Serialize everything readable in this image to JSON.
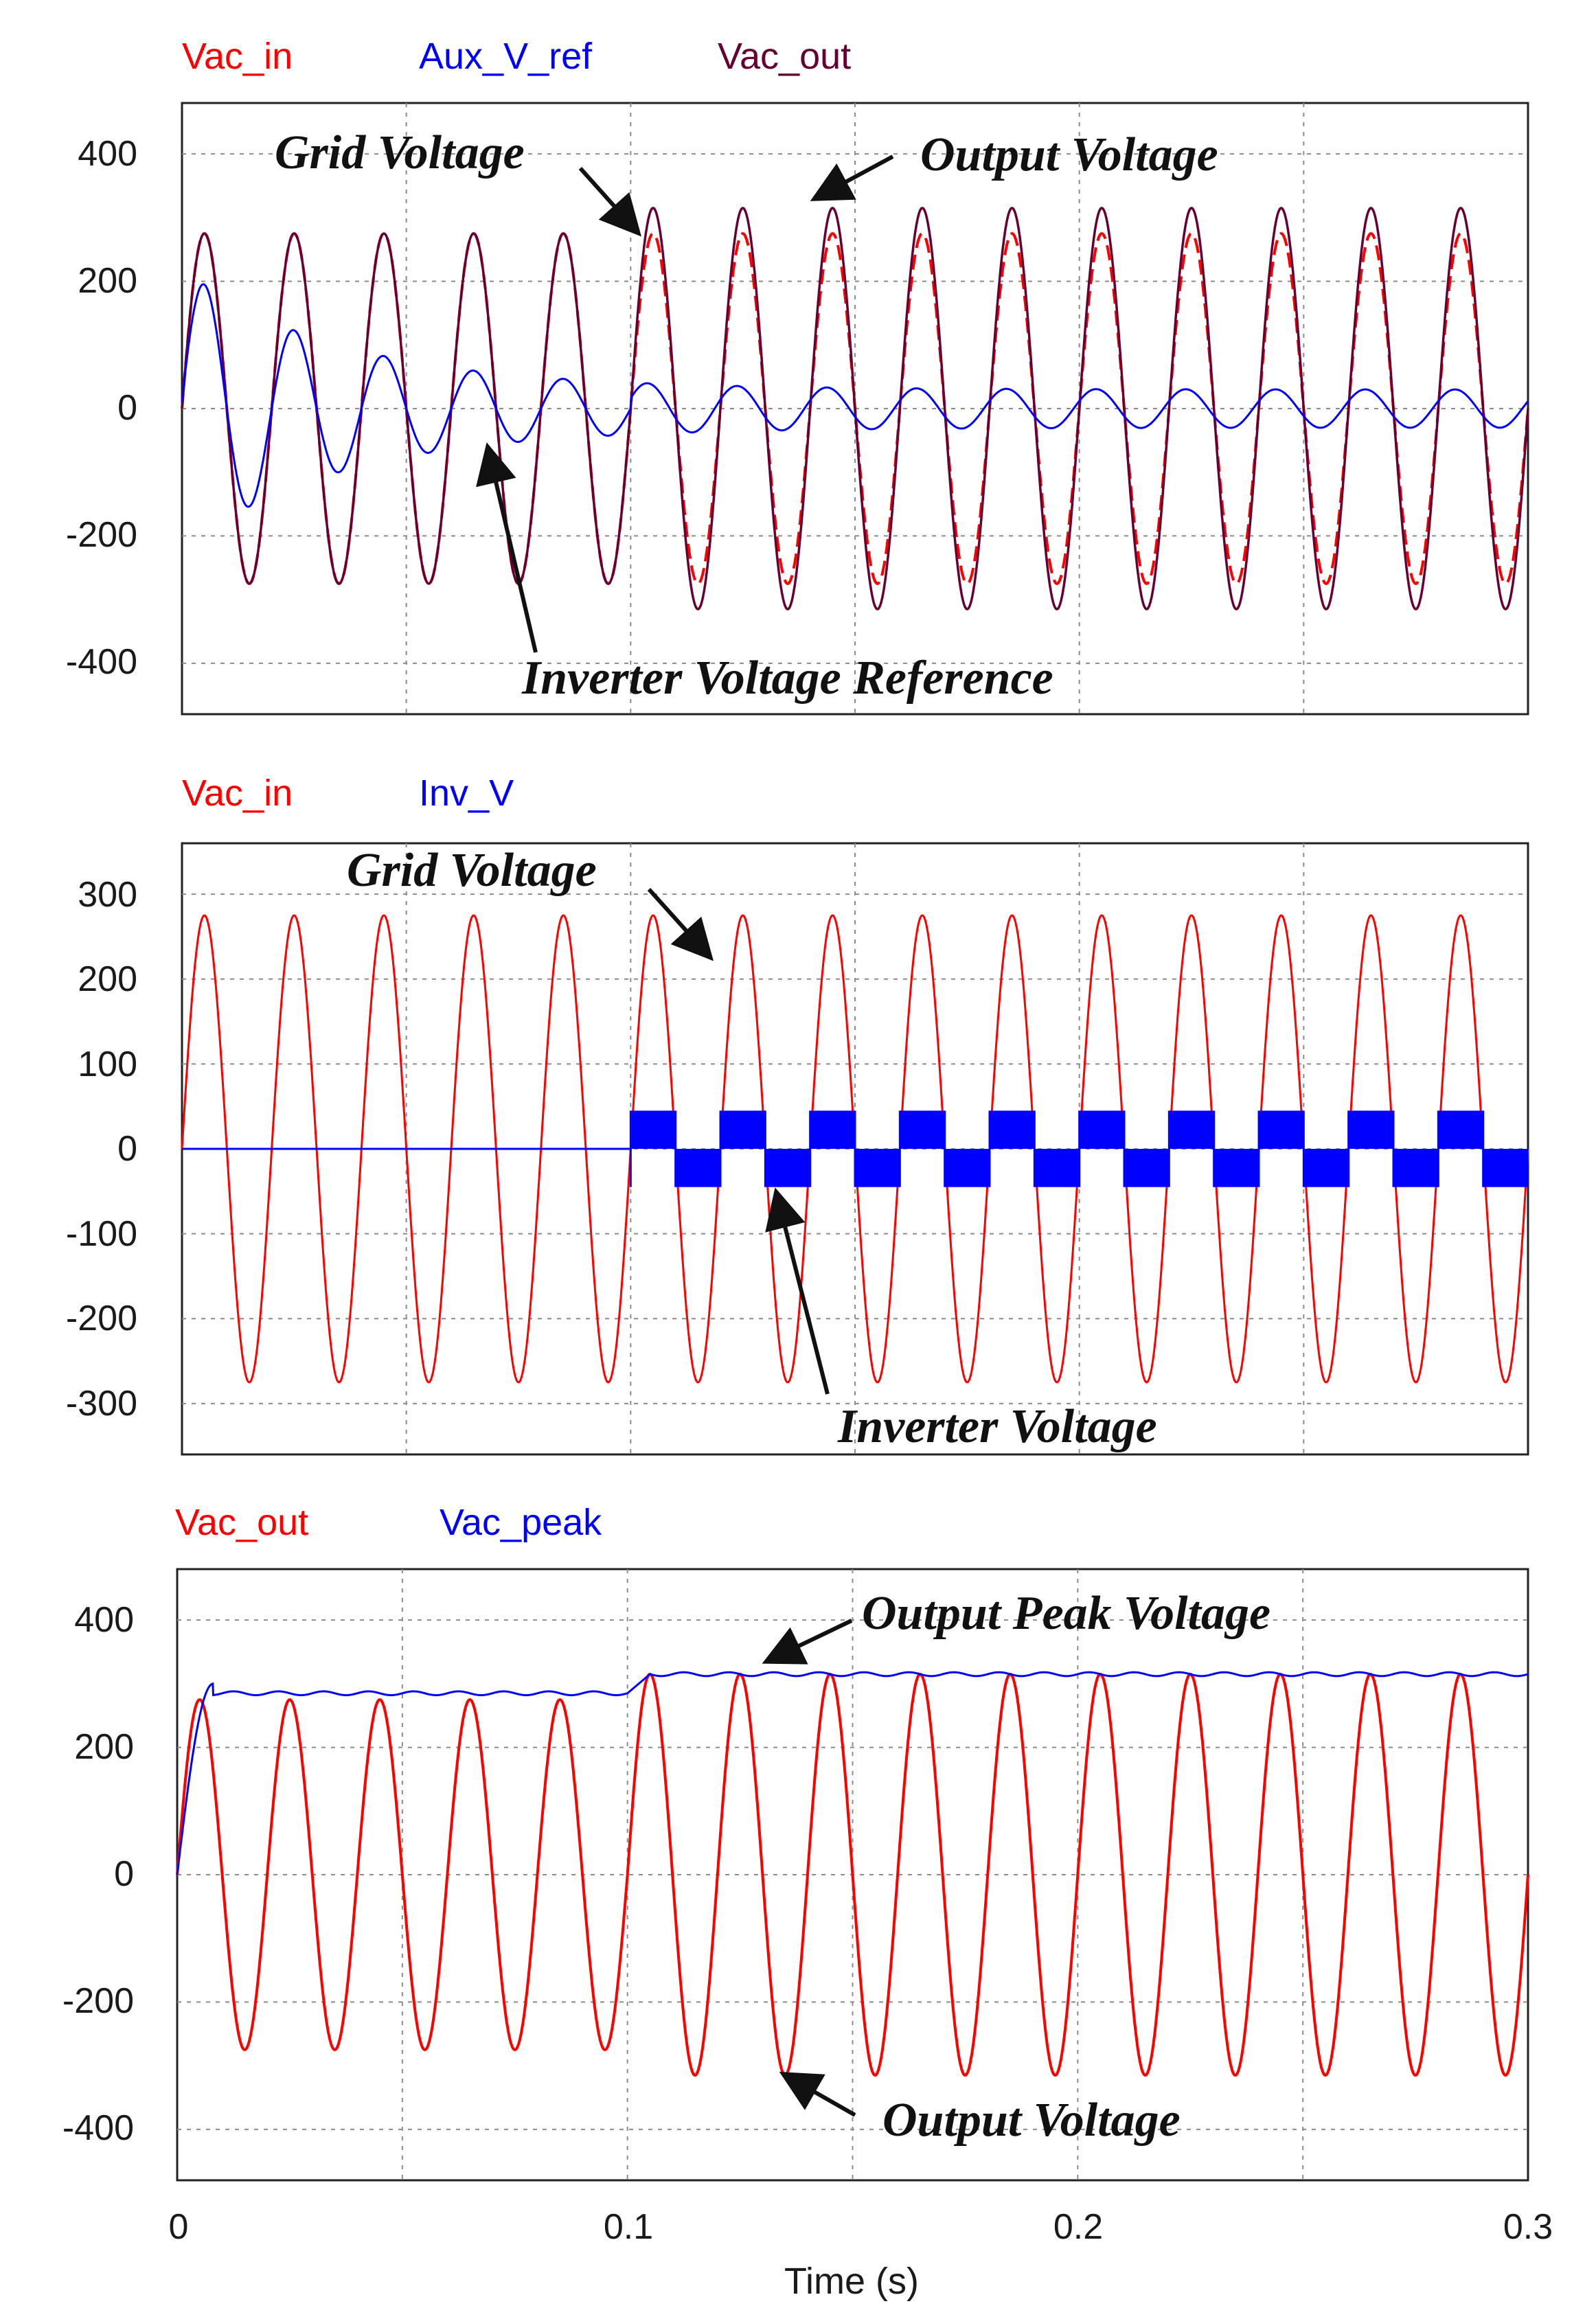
{
  "x_axis": {
    "ticks": [
      "0",
      "0.1",
      "0.2",
      "0.3"
    ],
    "label": "Time (s)",
    "xlim": [
      0,
      0.3
    ]
  },
  "chart_data": [
    {
      "type": "line",
      "legend": [
        {
          "name": "Vac_in",
          "color": "#ff0000"
        },
        {
          "name": "Aux_V_ref",
          "color": "#0000ff"
        },
        {
          "name": "Vac_out",
          "color": "#660033"
        }
      ],
      "ylim": [
        -480,
        480
      ],
      "yticks": [
        "400",
        "200",
        "0",
        "-200",
        "-400"
      ],
      "grid": true,
      "series": [
        {
          "name": "Vac_in",
          "color": "#ff0000",
          "description_values": {
            "amplitude": 275,
            "frequency_hz": 50
          }
        },
        {
          "name": "Aux_V_ref",
          "color": "#0000ff",
          "description_values": {
            "initial_amplitude": 220,
            "steady_state_amplitude": 30,
            "frequency_hz": 50
          }
        },
        {
          "name": "Vac_out",
          "color": "#660033",
          "description_values": {
            "amplitude_before_0_1s": 275,
            "amplitude_after_0_1s": 315,
            "frequency_hz": 50
          }
        }
      ],
      "annotations": [
        "Grid Voltage",
        "Output Voltage",
        "Inverter Voltage Reference"
      ]
    },
    {
      "type": "line",
      "legend": [
        {
          "name": "Vac_in",
          "color": "#ff0000"
        },
        {
          "name": "Inv_V",
          "color": "#0000ff"
        }
      ],
      "ylim": [
        -360,
        360
      ],
      "yticks": [
        "300",
        "200",
        "100",
        "0",
        "-100",
        "-200",
        "-300"
      ],
      "grid": true,
      "series": [
        {
          "name": "Vac_in",
          "color": "#ff0000",
          "description_values": {
            "amplitude": 275,
            "frequency_hz": 50
          }
        },
        {
          "name": "Inv_V",
          "color": "#0000ff",
          "description_values": {
            "value_before_0_1s": 0,
            "pwm_level_after_0_1s": 45,
            "frequency_hz": 50
          }
        }
      ],
      "annotations": [
        "Grid Voltage",
        "Inverter Voltage"
      ]
    },
    {
      "type": "line",
      "legend": [
        {
          "name": "Vac_out",
          "color": "#ff0000"
        },
        {
          "name": "Vac_peak",
          "color": "#0000ff"
        }
      ],
      "ylim": [
        -480,
        480
      ],
      "yticks": [
        "400",
        "200",
        "0",
        "-200",
        "-400"
      ],
      "grid": true,
      "series": [
        {
          "name": "Vac_out",
          "color": "#ff0000",
          "description_values": {
            "amplitude_before_0_1s": 275,
            "amplitude_after_0_1s": 315,
            "frequency_hz": 50
          }
        },
        {
          "name": "Vac_peak",
          "color": "#0000ff",
          "description_values": {
            "level_before_0_1s": 285,
            "level_after_0_1s": 315
          }
        }
      ],
      "annotations": [
        "Output Peak Voltage",
        "Output Voltage"
      ]
    }
  ]
}
